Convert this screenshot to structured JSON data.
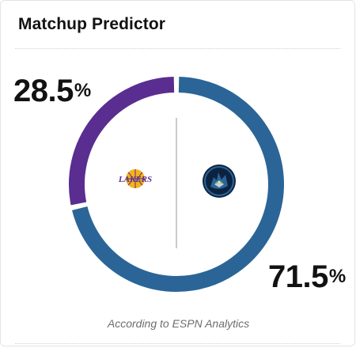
{
  "widget": {
    "title": "Matchup Predictor",
    "source_note": "According to ESPN Analytics"
  },
  "teams": {
    "away": {
      "name": "Lakers",
      "logo_text": "LAKERS",
      "win_probability": 28.5,
      "percent_value": "28.5",
      "color": "#5a2d91"
    },
    "home": {
      "name": "Timberwolves",
      "win_probability": 71.5,
      "percent_value": "71.5",
      "color": "#2b6597"
    },
    "percent_sign": "%"
  },
  "colors": {
    "lakers_gold": "#f5b21b",
    "wolves_navy": "#0c2340",
    "wolves_green": "#78be20",
    "center_line": "#9a9a9a"
  }
}
